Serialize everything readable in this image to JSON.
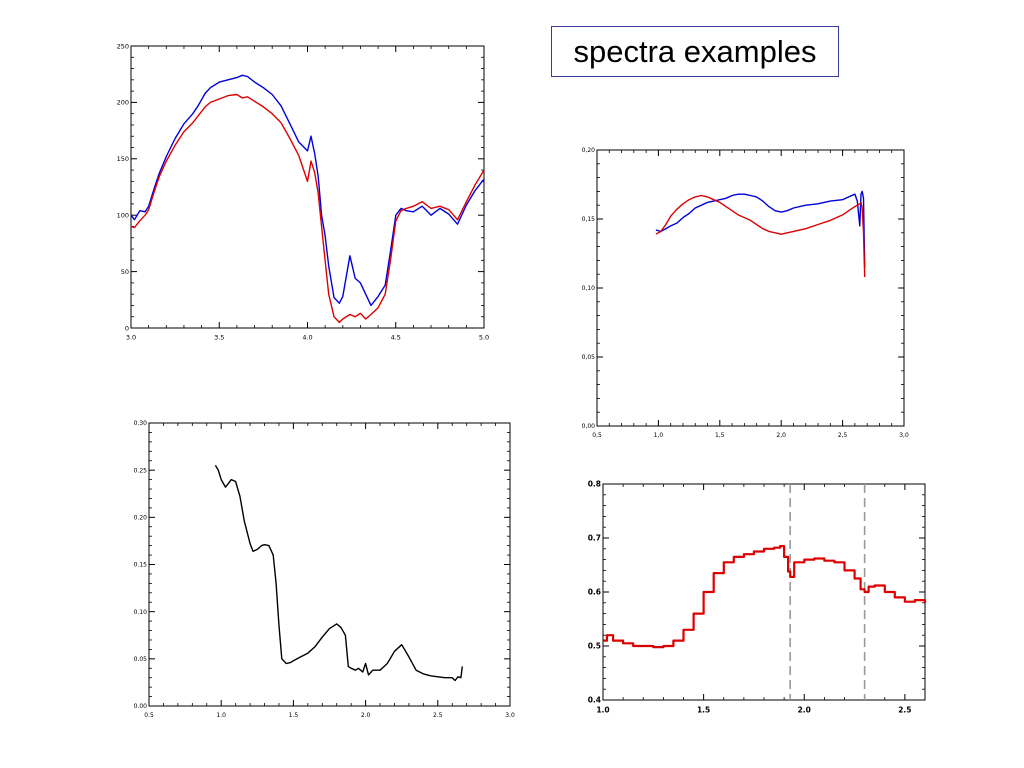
{
  "page_title": "spectra examples",
  "chart_data": [
    {
      "id": "top-left",
      "type": "line",
      "xlim": [
        3.0,
        5.0
      ],
      "ylim": [
        0,
        250
      ],
      "xticks": [
        3.0,
        3.5,
        4.0,
        4.5,
        5.0
      ],
      "xtick_labels": [
        "3.0",
        "3.5",
        "4.0",
        "4.5",
        "5.0"
      ],
      "yticks": [
        0,
        50,
        100,
        150,
        200,
        250
      ],
      "ytick_labels": [
        "0",
        "50",
        "100",
        "150",
        "200",
        "250"
      ],
      "grid": false,
      "series": [
        {
          "color": "#0000dd",
          "x": [
            3.0,
            3.02,
            3.05,
            3.08,
            3.1,
            3.13,
            3.16,
            3.2,
            3.25,
            3.3,
            3.35,
            3.38,
            3.42,
            3.45,
            3.5,
            3.55,
            3.6,
            3.63,
            3.66,
            3.7,
            3.75,
            3.8,
            3.85,
            3.9,
            3.95,
            4.0,
            4.02,
            4.04,
            4.06,
            4.08,
            4.1,
            4.12,
            4.15,
            4.18,
            4.2,
            4.24,
            4.27,
            4.3,
            4.33,
            4.36,
            4.4,
            4.44,
            4.47,
            4.5,
            4.53,
            4.56,
            4.6,
            4.65,
            4.7,
            4.75,
            4.8,
            4.85,
            4.9,
            4.95,
            5.0
          ],
          "y": [
            100,
            96,
            104,
            103,
            108,
            123,
            137,
            152,
            168,
            181,
            190,
            197,
            208,
            213,
            218,
            220,
            222,
            224,
            223,
            218,
            213,
            207,
            197,
            181,
            165,
            157,
            170,
            155,
            135,
            100,
            82,
            55,
            27,
            22,
            28,
            64,
            44,
            40,
            30,
            20,
            28,
            38,
            68,
            100,
            106,
            104,
            103,
            108,
            100,
            106,
            101,
            92,
            109,
            122,
            132
          ]
        },
        {
          "color": "#dd0000",
          "x": [
            3.0,
            3.02,
            3.05,
            3.08,
            3.1,
            3.13,
            3.16,
            3.2,
            3.25,
            3.3,
            3.35,
            3.38,
            3.42,
            3.45,
            3.5,
            3.55,
            3.6,
            3.63,
            3.66,
            3.7,
            3.75,
            3.8,
            3.85,
            3.9,
            3.95,
            4.0,
            4.02,
            4.04,
            4.06,
            4.08,
            4.1,
            4.12,
            4.15,
            4.18,
            4.2,
            4.24,
            4.27,
            4.3,
            4.33,
            4.36,
            4.4,
            4.44,
            4.47,
            4.5,
            4.53,
            4.56,
            4.6,
            4.65,
            4.7,
            4.75,
            4.8,
            4.85,
            4.9,
            4.95,
            5.0
          ],
          "y": [
            90,
            89,
            95,
            100,
            105,
            120,
            134,
            148,
            162,
            174,
            182,
            188,
            196,
            200,
            203,
            206,
            207,
            204,
            205,
            201,
            196,
            190,
            182,
            168,
            153,
            130,
            148,
            138,
            120,
            90,
            60,
            30,
            10,
            5,
            8,
            12,
            10,
            13,
            8,
            12,
            18,
            30,
            60,
            95,
            104,
            106,
            108,
            112,
            106,
            108,
            105,
            96,
            112,
            127,
            140
          ]
        }
      ]
    },
    {
      "id": "top-right",
      "type": "line",
      "xlim": [
        0.5,
        3.0
      ],
      "ylim": [
        0.0,
        0.2
      ],
      "xticks": [
        0.5,
        1.0,
        1.5,
        2.0,
        2.5,
        3.0
      ],
      "xtick_labels": [
        "0,5",
        "1,0",
        "1,5",
        "2,0",
        "2,5",
        "3,0"
      ],
      "yticks": [
        0.0,
        0.05,
        0.1,
        0.15,
        0.2
      ],
      "ytick_labels": [
        "0,00",
        "0,05",
        "0,10",
        "0,15",
        "0,20"
      ],
      "grid": false,
      "series": [
        {
          "color": "#0000dd",
          "x": [
            0.98,
            1.02,
            1.06,
            1.1,
            1.15,
            1.2,
            1.25,
            1.3,
            1.35,
            1.4,
            1.45,
            1.5,
            1.55,
            1.6,
            1.65,
            1.7,
            1.75,
            1.8,
            1.85,
            1.9,
            1.95,
            2.0,
            2.05,
            2.1,
            2.2,
            2.3,
            2.4,
            2.5,
            2.55,
            2.6,
            2.62,
            2.64,
            2.65,
            2.66,
            2.67,
            2.68
          ],
          "y": [
            0.142,
            0.141,
            0.143,
            0.145,
            0.147,
            0.151,
            0.154,
            0.158,
            0.16,
            0.162,
            0.163,
            0.164,
            0.165,
            0.167,
            0.168,
            0.168,
            0.167,
            0.166,
            0.163,
            0.159,
            0.156,
            0.155,
            0.156,
            0.158,
            0.16,
            0.161,
            0.163,
            0.164,
            0.166,
            0.168,
            0.163,
            0.145,
            0.168,
            0.17,
            0.165,
            0.115
          ]
        },
        {
          "color": "#dd0000",
          "x": [
            0.98,
            1.02,
            1.06,
            1.1,
            1.15,
            1.2,
            1.25,
            1.3,
            1.35,
            1.4,
            1.45,
            1.5,
            1.55,
            1.6,
            1.65,
            1.7,
            1.75,
            1.8,
            1.85,
            1.9,
            1.95,
            2.0,
            2.05,
            2.1,
            2.2,
            2.3,
            2.4,
            2.5,
            2.55,
            2.6,
            2.62,
            2.64,
            2.65,
            2.66,
            2.67,
            2.68
          ],
          "y": [
            0.139,
            0.141,
            0.146,
            0.152,
            0.157,
            0.161,
            0.164,
            0.166,
            0.167,
            0.166,
            0.164,
            0.162,
            0.159,
            0.156,
            0.153,
            0.151,
            0.149,
            0.146,
            0.143,
            0.141,
            0.14,
            0.139,
            0.14,
            0.141,
            0.143,
            0.146,
            0.149,
            0.153,
            0.156,
            0.159,
            0.16,
            0.161,
            0.162,
            0.158,
            0.14,
            0.108
          ]
        }
      ]
    },
    {
      "id": "bottom-left",
      "type": "line",
      "xlim": [
        0.5,
        3.0
      ],
      "ylim": [
        0.0,
        0.3
      ],
      "xticks": [
        0.5,
        1.0,
        1.5,
        2.0,
        2.5,
        3.0
      ],
      "xtick_labels": [
        "0.5",
        "1.0",
        "1.5",
        "2.0",
        "2.5",
        "3.0"
      ],
      "yticks": [
        0.0,
        0.05,
        0.1,
        0.15,
        0.2,
        0.25,
        0.3
      ],
      "ytick_labels": [
        "0.00",
        "0.05",
        "0.10",
        "0.15",
        "0.20",
        "0.25",
        "0.30"
      ],
      "grid": false,
      "series": [
        {
          "color": "#000000",
          "x": [
            0.96,
            0.98,
            1.0,
            1.03,
            1.05,
            1.07,
            1.1,
            1.13,
            1.16,
            1.2,
            1.22,
            1.25,
            1.28,
            1.3,
            1.33,
            1.36,
            1.38,
            1.4,
            1.42,
            1.45,
            1.48,
            1.5,
            1.55,
            1.6,
            1.65,
            1.7,
            1.75,
            1.8,
            1.83,
            1.86,
            1.88,
            1.9,
            1.93,
            1.95,
            1.98,
            2.0,
            2.02,
            2.05,
            2.1,
            2.15,
            2.2,
            2.25,
            2.3,
            2.35,
            2.4,
            2.45,
            2.5,
            2.55,
            2.6,
            2.62,
            2.64,
            2.66,
            2.67
          ],
          "y": [
            0.255,
            0.25,
            0.24,
            0.232,
            0.236,
            0.24,
            0.238,
            0.222,
            0.196,
            0.172,
            0.164,
            0.166,
            0.17,
            0.171,
            0.17,
            0.16,
            0.13,
            0.085,
            0.05,
            0.045,
            0.046,
            0.048,
            0.052,
            0.056,
            0.063,
            0.073,
            0.082,
            0.087,
            0.083,
            0.075,
            0.042,
            0.04,
            0.038,
            0.04,
            0.036,
            0.045,
            0.033,
            0.038,
            0.038,
            0.045,
            0.058,
            0.065,
            0.052,
            0.038,
            0.034,
            0.032,
            0.031,
            0.03,
            0.03,
            0.027,
            0.031,
            0.03,
            0.042
          ]
        }
      ]
    },
    {
      "id": "bottom-right",
      "type": "line",
      "xlim": [
        1.0,
        2.6
      ],
      "ylim": [
        0.4,
        0.8
      ],
      "xticks": [
        1.0,
        1.5,
        2.0,
        2.5
      ],
      "xtick_labels": [
        "1.0",
        "1.5",
        "2.0",
        "2.5"
      ],
      "yticks": [
        0.4,
        0.5,
        0.6,
        0.7,
        0.8
      ],
      "ytick_labels": [
        "0.4",
        "0.5",
        "0.6",
        "0.7",
        "0.8"
      ],
      "grid": false,
      "vlines": [
        1.93,
        2.3
      ],
      "vline_color": "#999999",
      "series": [
        {
          "color": "#dd0000",
          "step": true,
          "x": [
            1.0,
            1.02,
            1.05,
            1.1,
            1.15,
            1.2,
            1.25,
            1.3,
            1.35,
            1.4,
            1.45,
            1.5,
            1.55,
            1.6,
            1.65,
            1.7,
            1.75,
            1.8,
            1.85,
            1.88,
            1.9,
            1.92,
            1.93,
            1.95,
            2.0,
            2.05,
            2.1,
            2.15,
            2.2,
            2.25,
            2.28,
            2.3,
            2.32,
            2.35,
            2.4,
            2.45,
            2.5,
            2.55,
            2.6
          ],
          "y": [
            0.51,
            0.52,
            0.51,
            0.505,
            0.5,
            0.5,
            0.498,
            0.5,
            0.51,
            0.53,
            0.56,
            0.6,
            0.635,
            0.655,
            0.665,
            0.67,
            0.675,
            0.68,
            0.682,
            0.685,
            0.665,
            0.638,
            0.628,
            0.655,
            0.66,
            0.662,
            0.658,
            0.655,
            0.64,
            0.625,
            0.605,
            0.6,
            0.61,
            0.612,
            0.6,
            0.59,
            0.582,
            0.585,
            0.58
          ]
        }
      ]
    }
  ]
}
